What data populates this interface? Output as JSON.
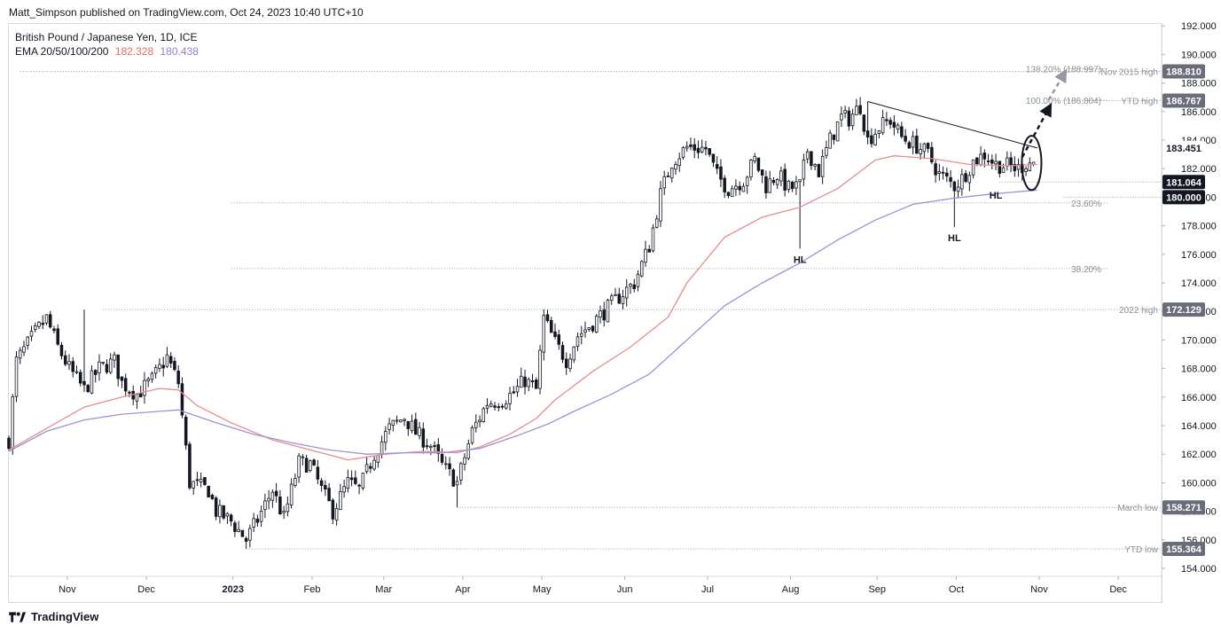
{
  "header": {
    "publisher_line": "Matt_Simpson published on TradingView.com, Oct 24, 2023 10:40 UTC+10"
  },
  "legend": {
    "line1": "British Pound / Japanese Yen, 1D, ICE",
    "line2_label": "EMA 20/50/100/200",
    "ema50_value": "182.328",
    "ema100_value": "180.438"
  },
  "footer": {
    "brand": "TradingView"
  },
  "colors": {
    "up_candle": "#ffffff",
    "down_candle": "#131722",
    "ema50": "#e88c8c",
    "ema100": "#9b93d6",
    "level_line": "#9598a1",
    "price_tag_dark": "#6a6d78"
  },
  "chart_data": {
    "type": "candlestick",
    "symbol": "British Pound / Japanese Yen, 1D, ICE",
    "y_axis": {
      "range": [
        153.0,
        193.0
      ],
      "ticks": [
        "154.000",
        "156.000",
        "158.000",
        "160.000",
        "162.000",
        "164.000",
        "166.000",
        "168.000",
        "170.000",
        "172.000",
        "174.000",
        "176.000",
        "178.000",
        "180.000",
        "182.000",
        "184.000",
        "186.000",
        "188.000",
        "190.000",
        "192.000"
      ]
    },
    "x_axis": {
      "labels": [
        "Nov",
        "Dec",
        "2023",
        "Feb",
        "Mar",
        "Apr",
        "May",
        "Jun",
        "Jul",
        "Aug",
        "Sep",
        "Oct",
        "Nov",
        "Dec"
      ],
      "label_positions": [
        0.5,
        21.5,
        44.5,
        65.5,
        84.5,
        105.5,
        126.5,
        148.5,
        170.5,
        192.5,
        215.5,
        236.5,
        258.5,
        279.5
      ],
      "index_range": [
        -15,
        291
      ]
    },
    "levels": [
      {
        "label": "Nov 2015 high",
        "value": 188.81,
        "tag": "188.810",
        "tag_style": "dark",
        "from_index": -12
      },
      {
        "label": "YTD high",
        "value": 186.767,
        "tag": "186.767",
        "tag_style": "dark",
        "from_index": 265
      },
      {
        "label": "2022 high",
        "value": 172.129,
        "tag": "172.129",
        "tag_style": "dark",
        "from_index": 10
      },
      {
        "label": "March low",
        "value": 158.271,
        "tag": "158.271",
        "tag_style": "dark",
        "from_index": 104
      },
      {
        "label": "YTD low",
        "value": 155.364,
        "tag": "155.364",
        "tag_style": "dark",
        "from_index": 48
      },
      {
        "label": "",
        "value": 181.064,
        "tag": "181.064",
        "tag_style": "navy",
        "from_index": 248
      },
      {
        "label": "",
        "value": 180.0,
        "tag": "180.000",
        "tag_style": "navy",
        "from_index": 265
      },
      {
        "label": "",
        "value": 183.451,
        "tag": "183.451",
        "tag_style": "plain",
        "from_index": 291
      }
    ],
    "fib_levels": [
      {
        "label": "23.60%",
        "value": 179.6,
        "from_index": 44
      },
      {
        "label": "38.20%",
        "value": 175.0,
        "from_index": 44
      },
      {
        "label": "100.00% (186.804)",
        "value": 186.804,
        "from_index": 265
      },
      {
        "label": "138.20% (188.997)",
        "value": 188.997,
        "from_index": 265
      }
    ],
    "annotations": [
      {
        "text": "HL",
        "index": 195,
        "value": 176.4
      },
      {
        "text": "HL",
        "index": 236,
        "value": 177.9
      },
      {
        "text": "HL",
        "index": 247,
        "value": 180.9
      }
    ],
    "trendline": {
      "from": [
        213,
        186.7
      ],
      "to": [
        258,
        183.45
      ]
    },
    "projection_arrows": [
      {
        "from": [
          254,
          182.8
        ],
        "to": [
          261,
          186.2
        ]
      },
      {
        "from": [
          261,
          186.8
        ],
        "to": [
          265,
          188.6
        ]
      }
    ],
    "highlight_ellipse": {
      "index": 256.5,
      "value": 182.4,
      "rx_bars": 1.3,
      "ry_value": 1.9
    },
    "ema_series": [
      {
        "name": "EMA 50",
        "points": [
          [
            -15,
            162.3
          ],
          [
            -5,
            163.8
          ],
          [
            5,
            165.3
          ],
          [
            15,
            166.0
          ],
          [
            25,
            166.6
          ],
          [
            30,
            166.5
          ],
          [
            35,
            165.4
          ],
          [
            44,
            164.2
          ],
          [
            55,
            163.0
          ],
          [
            65,
            162.3
          ],
          [
            75,
            161.6
          ],
          [
            85,
            162.0
          ],
          [
            95,
            162.2
          ],
          [
            104,
            162.1
          ],
          [
            110,
            162.5
          ],
          [
            118,
            163.4
          ],
          [
            125,
            164.5
          ],
          [
            130,
            165.8
          ],
          [
            140,
            167.8
          ],
          [
            150,
            169.5
          ],
          [
            160,
            171.6
          ],
          [
            165,
            174.0
          ],
          [
            175,
            177.2
          ],
          [
            185,
            178.6
          ],
          [
            195,
            179.3
          ],
          [
            205,
            180.6
          ],
          [
            210,
            181.6
          ],
          [
            215,
            182.6
          ],
          [
            220,
            182.9
          ],
          [
            230,
            182.7
          ],
          [
            240,
            182.3
          ],
          [
            250,
            182.2
          ],
          [
            258,
            182.3
          ]
        ]
      },
      {
        "name": "EMA 100",
        "points": [
          [
            -15,
            162.2
          ],
          [
            -5,
            163.6
          ],
          [
            5,
            164.4
          ],
          [
            15,
            164.8
          ],
          [
            25,
            165.0
          ],
          [
            30,
            165.1
          ],
          [
            40,
            164.2
          ],
          [
            50,
            163.4
          ],
          [
            60,
            162.8
          ],
          [
            70,
            162.3
          ],
          [
            80,
            162.0
          ],
          [
            90,
            162.1
          ],
          [
            100,
            162.1
          ],
          [
            110,
            162.4
          ],
          [
            120,
            163.3
          ],
          [
            128,
            164.1
          ],
          [
            135,
            165.0
          ],
          [
            145,
            166.2
          ],
          [
            155,
            167.6
          ],
          [
            165,
            170.0
          ],
          [
            175,
            172.4
          ],
          [
            185,
            174.0
          ],
          [
            195,
            175.4
          ],
          [
            205,
            177.0
          ],
          [
            215,
            178.4
          ],
          [
            225,
            179.5
          ],
          [
            235,
            179.9
          ],
          [
            245,
            180.2
          ],
          [
            258,
            180.5
          ]
        ]
      }
    ]
  }
}
